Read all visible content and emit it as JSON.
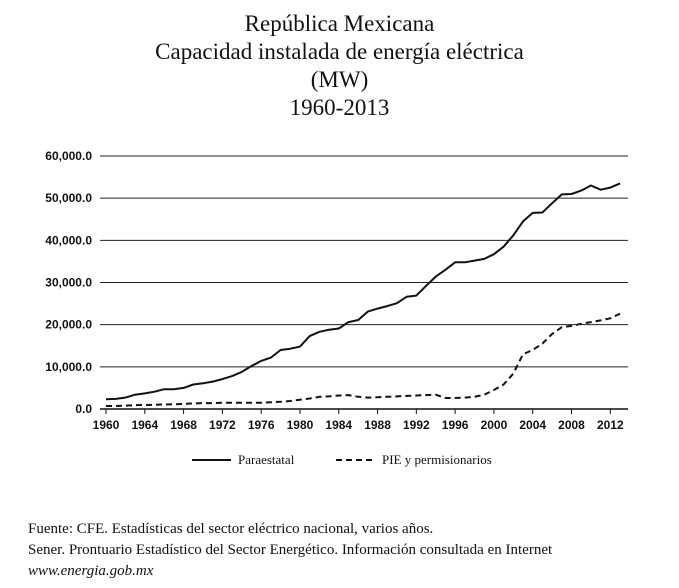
{
  "titles": [
    "República Mexicana",
    "Capacidad instalada de energía eléctrica",
    "(MW)",
    "1960-2013"
  ],
  "chart_data": {
    "type": "line",
    "x": [
      1960,
      1961,
      1962,
      1963,
      1964,
      1965,
      1966,
      1967,
      1968,
      1969,
      1970,
      1971,
      1972,
      1973,
      1974,
      1975,
      1976,
      1977,
      1978,
      1979,
      1980,
      1981,
      1982,
      1983,
      1984,
      1985,
      1986,
      1987,
      1988,
      1989,
      1990,
      1991,
      1992,
      1993,
      1994,
      1995,
      1996,
      1997,
      1998,
      1999,
      2000,
      2001,
      2002,
      2003,
      2004,
      2005,
      2006,
      2007,
      2008,
      2009,
      2010,
      2011,
      2012,
      2013
    ],
    "series": [
      {
        "name": "Paraestatal",
        "style": "solid",
        "values": [
          2300,
          2400,
          2700,
          3400,
          3700,
          4100,
          4700,
          4700,
          5000,
          5800,
          6100,
          6500,
          7100,
          7800,
          8800,
          10200,
          11400,
          12200,
          14000,
          14300,
          14800,
          17300,
          18300,
          18800,
          19100,
          20600,
          21100,
          23100,
          23800,
          24400,
          25100,
          26600,
          26900,
          29200,
          31400,
          33000,
          34800,
          34800,
          35200,
          35600,
          36700,
          38500,
          41200,
          44500,
          46500,
          46600,
          48800,
          50900,
          51000,
          51800,
          53000,
          52000,
          52500,
          53500
        ]
      },
      {
        "name": "PIE y permisionarios",
        "style": "dashed",
        "values": [
          700,
          700,
          800,
          900,
          950,
          1000,
          1100,
          1100,
          1200,
          1300,
          1400,
          1400,
          1500,
          1500,
          1500,
          1500,
          1500,
          1600,
          1700,
          1900,
          2200,
          2500,
          2900,
          3000,
          3200,
          3300,
          2900,
          2700,
          2800,
          2900,
          3000,
          3100,
          3200,
          3300,
          3400,
          2600,
          2600,
          2700,
          2900,
          3400,
          4500,
          5800,
          8400,
          13000,
          14000,
          15500,
          17800,
          19400,
          19700,
          20200,
          20600,
          21000,
          21500,
          22600
        ]
      }
    ],
    "xticks": [
      "1960",
      "1964",
      "1968",
      "1972",
      "1976",
      "1980",
      "1984",
      "1988",
      "1992",
      "1996",
      "2000",
      "2004",
      "2008",
      "2012"
    ],
    "yticks": [
      "0.0",
      "10,000.0",
      "20,000.0",
      "30,000.0",
      "40,000.0",
      "50,000.0",
      "60,000.0"
    ],
    "ylim": [
      0,
      60000
    ],
    "xlim": [
      1960,
      2013
    ],
    "grid": true,
    "legend_position": "bottom"
  },
  "source": {
    "line1": "Fuente: CFE. Estadísticas del sector eléctrico nacional, varios años.",
    "line2": "Sener. Prontuario Estadístico del Sector Energético. Información consultada en Internet",
    "line3": "www.energia.gob.mx"
  }
}
